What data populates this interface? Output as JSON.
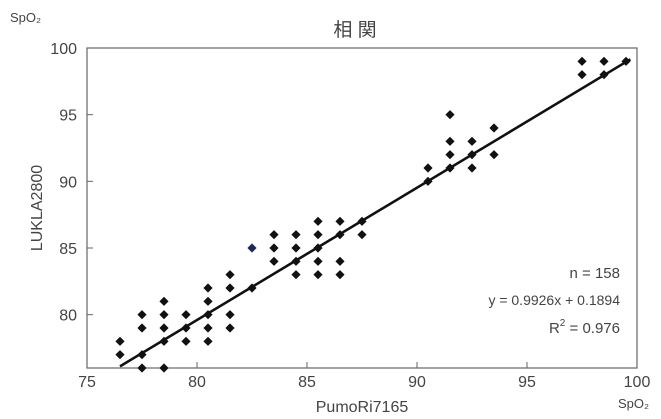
{
  "chart_data": {
    "type": "scatter",
    "title": "相 関",
    "xlabel": "PumoRi7165",
    "ylabel": "LUKLA2800",
    "x_unit": "SpO₂",
    "y_unit": "SpO₂",
    "xlim": [
      75,
      100
    ],
    "ylim": [
      76,
      100
    ],
    "x_ticks": [
      "75",
      "80",
      "85",
      "90",
      "95",
      "100"
    ],
    "y_ticks": [
      "80",
      "85",
      "90",
      "95",
      "100"
    ],
    "grid": false,
    "points": [
      [
        76.5,
        78
      ],
      [
        76.5,
        77
      ],
      [
        77.5,
        80
      ],
      [
        77.5,
        79
      ],
      [
        77.5,
        77
      ],
      [
        77.5,
        76
      ],
      [
        78.5,
        81
      ],
      [
        78.5,
        80
      ],
      [
        78.5,
        79
      ],
      [
        78.5,
        78
      ],
      [
        78.5,
        76
      ],
      [
        79.5,
        80
      ],
      [
        79.5,
        79
      ],
      [
        79.5,
        78
      ],
      [
        80.5,
        82
      ],
      [
        80.5,
        81
      ],
      [
        80.5,
        80
      ],
      [
        80.5,
        79
      ],
      [
        80.5,
        78
      ],
      [
        81.5,
        83
      ],
      [
        81.5,
        82
      ],
      [
        81.5,
        80
      ],
      [
        81.5,
        79
      ],
      [
        82.5,
        85
      ],
      [
        82.5,
        82
      ],
      [
        83.5,
        86
      ],
      [
        83.5,
        85
      ],
      [
        83.5,
        84
      ],
      [
        84.5,
        86
      ],
      [
        84.5,
        85
      ],
      [
        84.5,
        84
      ],
      [
        84.5,
        83
      ],
      [
        85.5,
        87
      ],
      [
        85.5,
        86
      ],
      [
        85.5,
        85
      ],
      [
        85.5,
        84
      ],
      [
        85.5,
        83
      ],
      [
        86.5,
        87
      ],
      [
        86.5,
        86
      ],
      [
        86.5,
        84
      ],
      [
        86.5,
        83
      ],
      [
        87.5,
        87
      ],
      [
        87.5,
        86
      ],
      [
        90.5,
        91
      ],
      [
        90.5,
        90
      ],
      [
        91.5,
        95
      ],
      [
        91.5,
        93
      ],
      [
        91.5,
        92
      ],
      [
        91.5,
        91
      ],
      [
        92.5,
        93
      ],
      [
        92.5,
        92
      ],
      [
        92.5,
        91
      ],
      [
        93.5,
        94
      ],
      [
        93.5,
        92
      ],
      [
        97.5,
        99
      ],
      [
        97.5,
        98
      ],
      [
        98.5,
        99
      ],
      [
        98.5,
        98
      ],
      [
        99.5,
        99
      ]
    ],
    "highlight_point": [
      82.5,
      85
    ],
    "regression": {
      "slope": 0.9926,
      "intercept": 0.1894
    },
    "annotations": {
      "n": "n  =   158",
      "equation": "y = 0.9926x + 0.1894",
      "r2_base": "R",
      "r2_sup": "2",
      "r2_value": " = 0.976"
    },
    "colors": {
      "marker": "#111111",
      "highlight": "#1c2a5a",
      "line": "#111111",
      "axis": "#555555"
    }
  }
}
